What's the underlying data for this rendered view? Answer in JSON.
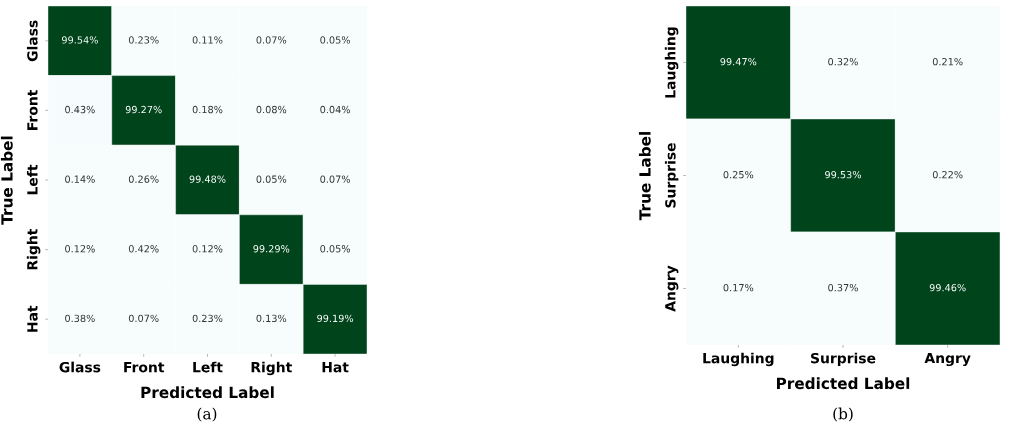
{
  "chart_data": [
    {
      "type": "heatmap",
      "xlabel": "Predicted Label",
      "ylabel": "True Label",
      "categories": [
        "Glass",
        "Front",
        "Left",
        "Right",
        "Hat"
      ],
      "y_categories": [
        "Glass",
        "Front",
        "Left",
        "Right",
        "Hat"
      ],
      "cells": [
        [
          99.54,
          0.23,
          0.11,
          0.07,
          0.05
        ],
        [
          0.43,
          99.27,
          0.18,
          0.08,
          0.04
        ],
        [
          0.14,
          0.26,
          99.48,
          0.05,
          0.07
        ],
        [
          0.12,
          0.42,
          0.12,
          99.29,
          0.05
        ],
        [
          0.38,
          0.07,
          0.23,
          0.13,
          99.19
        ]
      ],
      "cell_labels": [
        [
          "99.54%",
          "0.23%",
          "0.11%",
          "0.07%",
          "0.05%"
        ],
        [
          "0.43%",
          "99.27%",
          "0.18%",
          "0.08%",
          "0.04%"
        ],
        [
          "0.14%",
          "0.26%",
          "99.48%",
          "0.05%",
          "0.07%"
        ],
        [
          "0.12%",
          "0.42%",
          "0.12%",
          "99.29%",
          "0.05%"
        ],
        [
          "0.38%",
          "0.07%",
          "0.23%",
          "0.13%",
          "99.19%"
        ]
      ],
      "annotations": [
        "(a)"
      ]
    },
    {
      "type": "heatmap",
      "xlabel": "Predicted Label",
      "ylabel": "True Label",
      "categories": [
        "Laughing",
        "Surprise",
        "Angry"
      ],
      "y_categories": [
        "Laughing",
        "Surprise",
        "Angry"
      ],
      "cells": [
        [
          99.47,
          0.32,
          0.21
        ],
        [
          0.25,
          99.53,
          0.22
        ],
        [
          0.17,
          0.37,
          99.46
        ]
      ],
      "cell_labels": [
        [
          "99.47%",
          "0.32%",
          "0.21%"
        ],
        [
          "0.25%",
          "99.53%",
          "0.22%"
        ],
        [
          "0.17%",
          "0.37%",
          "99.46%"
        ]
      ],
      "annotations": [
        "(b)"
      ]
    }
  ]
}
